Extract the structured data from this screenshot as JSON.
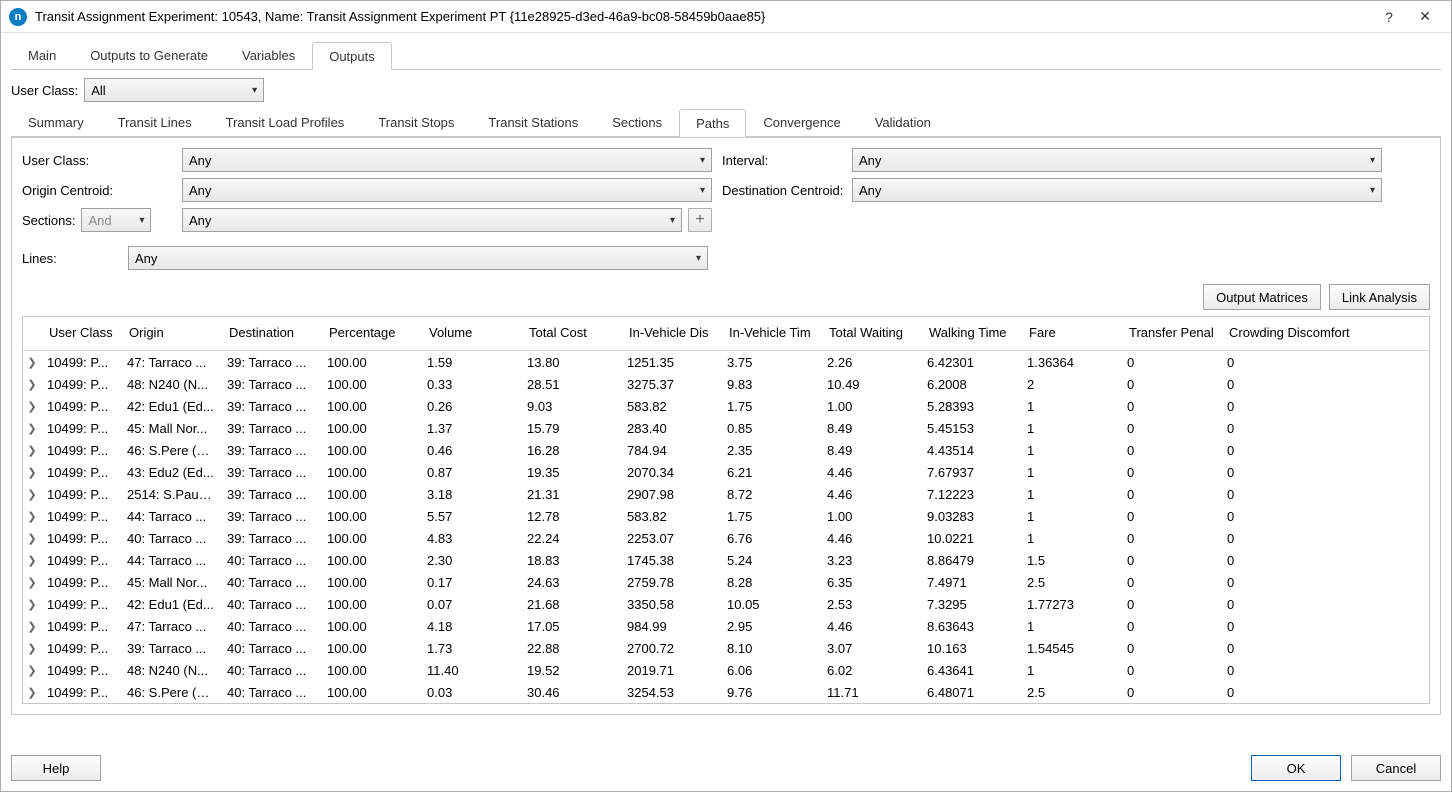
{
  "window": {
    "title": "Transit Assignment Experiment: 10543, Name: Transit Assignment Experiment PT  {11e28925-d3ed-46a9-bc08-58459b0aae85}",
    "app_icon_letter": "n"
  },
  "main_tabs": {
    "items": [
      "Main",
      "Outputs to Generate",
      "Variables",
      "Outputs"
    ],
    "active_index": 3
  },
  "user_class_top": {
    "label": "User Class:",
    "value": "All"
  },
  "sub_tabs": {
    "items": [
      "Summary",
      "Transit Lines",
      "Transit Load Profiles",
      "Transit Stops",
      "Transit Stations",
      "Sections",
      "Paths",
      "Convergence",
      "Validation"
    ],
    "active_index": 6
  },
  "filters": {
    "user_class": {
      "label": "User Class:",
      "value": "Any"
    },
    "interval": {
      "label": "Interval:",
      "value": "Any"
    },
    "origin": {
      "label": "Origin Centroid:",
      "value": "Any"
    },
    "dest": {
      "label": "Destination Centroid:",
      "value": "Any"
    },
    "sections": {
      "label": "Sections:",
      "mode": "And",
      "value": "Any"
    },
    "lines": {
      "label": "Lines:",
      "value": "Any"
    }
  },
  "buttons": {
    "output_matrices": "Output Matrices",
    "link_analysis": "Link Analysis",
    "help": "Help",
    "ok": "OK",
    "cancel": "Cancel"
  },
  "table": {
    "columns": [
      "User Class",
      "Origin",
      "Destination",
      "Percentage",
      "Volume",
      "Total Cost",
      "In-Vehicle Dis",
      "In-Vehicle Tim",
      "Total Waiting",
      "Walking Time",
      "Fare",
      "Transfer Penal",
      "Crowding Discomfort"
    ],
    "rows": [
      {
        "uc": "10499: P...",
        "orig": "47: Tarraco ...",
        "dest": "39: Tarraco ...",
        "pct": "100.00",
        "vol": "1.59",
        "tc": "13.80",
        "ivd": "1251.35",
        "ivt": "3.75",
        "tw": "2.26",
        "wt": "6.42301",
        "fare": "1.36364",
        "tp": "0",
        "cd": "0"
      },
      {
        "uc": "10499: P...",
        "orig": "48: N240 (N...",
        "dest": "39: Tarraco ...",
        "pct": "100.00",
        "vol": "0.33",
        "tc": "28.51",
        "ivd": "3275.37",
        "ivt": "9.83",
        "tw": "10.49",
        "wt": "6.2008",
        "fare": "2",
        "tp": "0",
        "cd": "0"
      },
      {
        "uc": "10499: P...",
        "orig": "42: Edu1 (Ed...",
        "dest": "39: Tarraco ...",
        "pct": "100.00",
        "vol": "0.26",
        "tc": "9.03",
        "ivd": "583.82",
        "ivt": "1.75",
        "tw": "1.00",
        "wt": "5.28393",
        "fare": "1",
        "tp": "0",
        "cd": "0"
      },
      {
        "uc": "10499: P...",
        "orig": "45: Mall Nor...",
        "dest": "39: Tarraco ...",
        "pct": "100.00",
        "vol": "1.37",
        "tc": "15.79",
        "ivd": "283.40",
        "ivt": "0.85",
        "tw": "8.49",
        "wt": "5.45153",
        "fare": "1",
        "tp": "0",
        "cd": "0"
      },
      {
        "uc": "10499: P...",
        "orig": "46: S.Pere (S...",
        "dest": "39: Tarraco ...",
        "pct": "100.00",
        "vol": "0.46",
        "tc": "16.28",
        "ivd": "784.94",
        "ivt": "2.35",
        "tw": "8.49",
        "wt": "4.43514",
        "fare": "1",
        "tp": "0",
        "cd": "0"
      },
      {
        "uc": "10499: P...",
        "orig": "43: Edu2 (Ed...",
        "dest": "39: Tarraco ...",
        "pct": "100.00",
        "vol": "0.87",
        "tc": "19.35",
        "ivd": "2070.34",
        "ivt": "6.21",
        "tw": "4.46",
        "wt": "7.67937",
        "fare": "1",
        "tp": "0",
        "cd": "0"
      },
      {
        "uc": "10499: P...",
        "orig": "2514: S.Pau (...",
        "dest": "39: Tarraco ...",
        "pct": "100.00",
        "vol": "3.18",
        "tc": "21.31",
        "ivd": "2907.98",
        "ivt": "8.72",
        "tw": "4.46",
        "wt": "7.12223",
        "fare": "1",
        "tp": "0",
        "cd": "0"
      },
      {
        "uc": "10499: P...",
        "orig": "44: Tarraco ...",
        "dest": "39: Tarraco ...",
        "pct": "100.00",
        "vol": "5.57",
        "tc": "12.78",
        "ivd": "583.82",
        "ivt": "1.75",
        "tw": "1.00",
        "wt": "9.03283",
        "fare": "1",
        "tp": "0",
        "cd": "0"
      },
      {
        "uc": "10499: P...",
        "orig": "40: Tarraco ...",
        "dest": "39: Tarraco ...",
        "pct": "100.00",
        "vol": "4.83",
        "tc": "22.24",
        "ivd": "2253.07",
        "ivt": "6.76",
        "tw": "4.46",
        "wt": "10.0221",
        "fare": "1",
        "tp": "0",
        "cd": "0"
      },
      {
        "uc": "10499: P...",
        "orig": "44: Tarraco ...",
        "dest": "40: Tarraco ...",
        "pct": "100.00",
        "vol": "2.30",
        "tc": "18.83",
        "ivd": "1745.38",
        "ivt": "5.24",
        "tw": "3.23",
        "wt": "8.86479",
        "fare": "1.5",
        "tp": "0",
        "cd": "0"
      },
      {
        "uc": "10499: P...",
        "orig": "45: Mall Nor...",
        "dest": "40: Tarraco ...",
        "pct": "100.00",
        "vol": "0.17",
        "tc": "24.63",
        "ivd": "2759.78",
        "ivt": "8.28",
        "tw": "6.35",
        "wt": "7.4971",
        "fare": "2.5",
        "tp": "0",
        "cd": "0"
      },
      {
        "uc": "10499: P...",
        "orig": "42: Edu1 (Ed...",
        "dest": "40: Tarraco ...",
        "pct": "100.00",
        "vol": "0.07",
        "tc": "21.68",
        "ivd": "3350.58",
        "ivt": "10.05",
        "tw": "2.53",
        "wt": "7.3295",
        "fare": "1.77273",
        "tp": "0",
        "cd": "0"
      },
      {
        "uc": "10499: P...",
        "orig": "47: Tarraco ...",
        "dest": "40: Tarraco ...",
        "pct": "100.00",
        "vol": "4.18",
        "tc": "17.05",
        "ivd": "984.99",
        "ivt": "2.95",
        "tw": "4.46",
        "wt": "8.63643",
        "fare": "1",
        "tp": "0",
        "cd": "0"
      },
      {
        "uc": "10499: P...",
        "orig": "39: Tarraco ...",
        "dest": "40: Tarraco ...",
        "pct": "100.00",
        "vol": "1.73",
        "tc": "22.88",
        "ivd": "2700.72",
        "ivt": "8.10",
        "tw": "3.07",
        "wt": "10.163",
        "fare": "1.54545",
        "tp": "0",
        "cd": "0"
      },
      {
        "uc": "10499: P...",
        "orig": "48: N240 (N...",
        "dest": "40: Tarraco ...",
        "pct": "100.00",
        "vol": "11.40",
        "tc": "19.52",
        "ivd": "2019.71",
        "ivt": "6.06",
        "tw": "6.02",
        "wt": "6.43641",
        "fare": "1",
        "tp": "0",
        "cd": "0"
      },
      {
        "uc": "10499: P...",
        "orig": "46: S.Pere (S...",
        "dest": "40: Tarraco ...",
        "pct": "100.00",
        "vol": "0.03",
        "tc": "30.46",
        "ivd": "3254.53",
        "ivt": "9.76",
        "tw": "11.71",
        "wt": "6.48071",
        "fare": "2.5",
        "tp": "0",
        "cd": "0"
      }
    ]
  }
}
